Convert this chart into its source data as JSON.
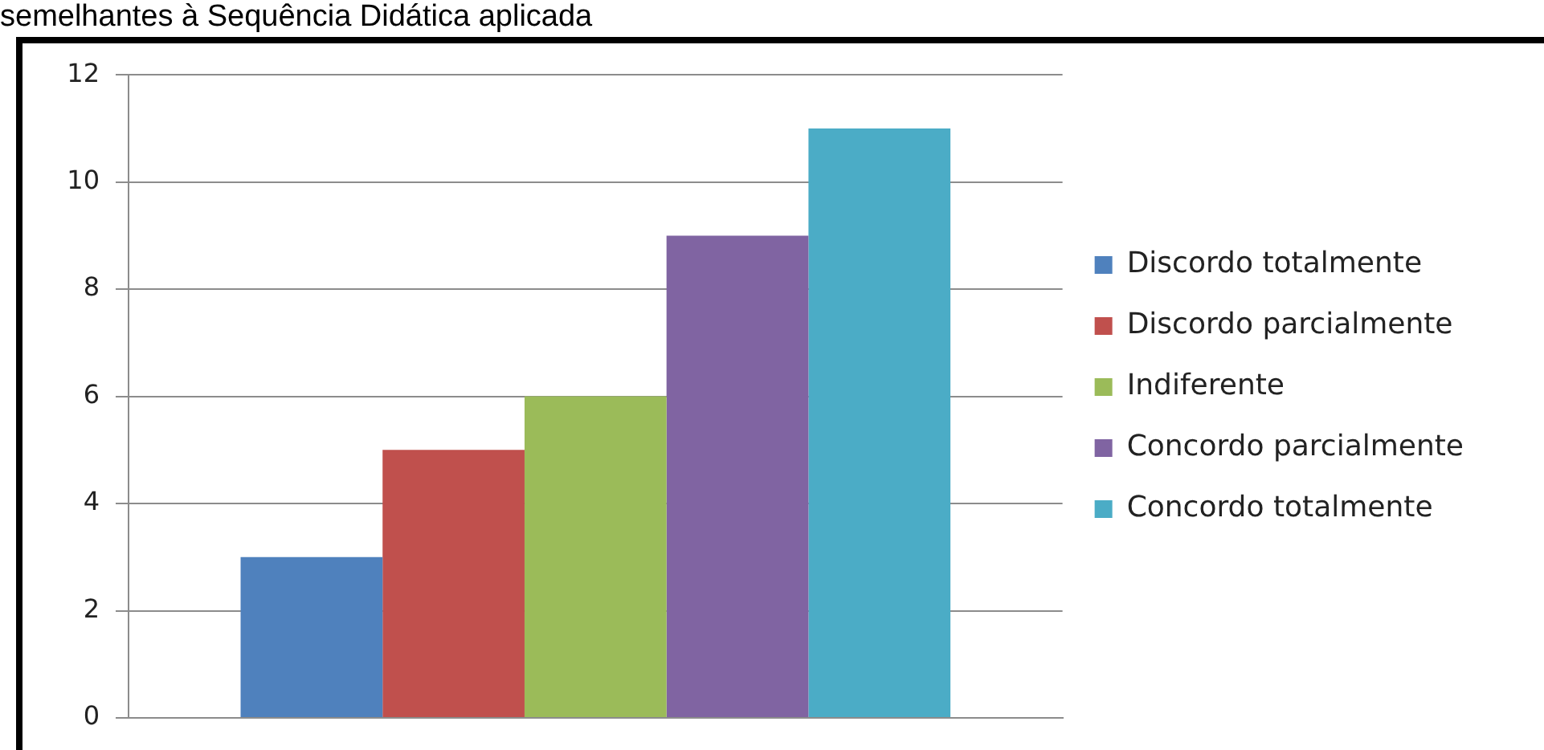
{
  "chart_data": {
    "type": "bar",
    "title": "semelhantes à Sequência Didática aplicada",
    "categories": [
      null
    ],
    "series": [
      {
        "name": "Discordo totalmente",
        "color": "#4f81bd",
        "values": [
          3
        ]
      },
      {
        "name": "Discordo parcialmente",
        "color": "#c0504d",
        "values": [
          5
        ]
      },
      {
        "name": "Indiferente",
        "color": "#9bbb59",
        "values": [
          6
        ]
      },
      {
        "name": "Concordo parcialmente",
        "color": "#8064a2",
        "values": [
          9
        ]
      },
      {
        "name": "Concordo totalmente",
        "color": "#4bacc6",
        "values": [
          11
        ]
      }
    ],
    "ylim": [
      0,
      12
    ],
    "yticks": [
      0,
      2,
      4,
      6,
      8,
      10,
      12
    ],
    "grid": "y",
    "legend": "right"
  }
}
